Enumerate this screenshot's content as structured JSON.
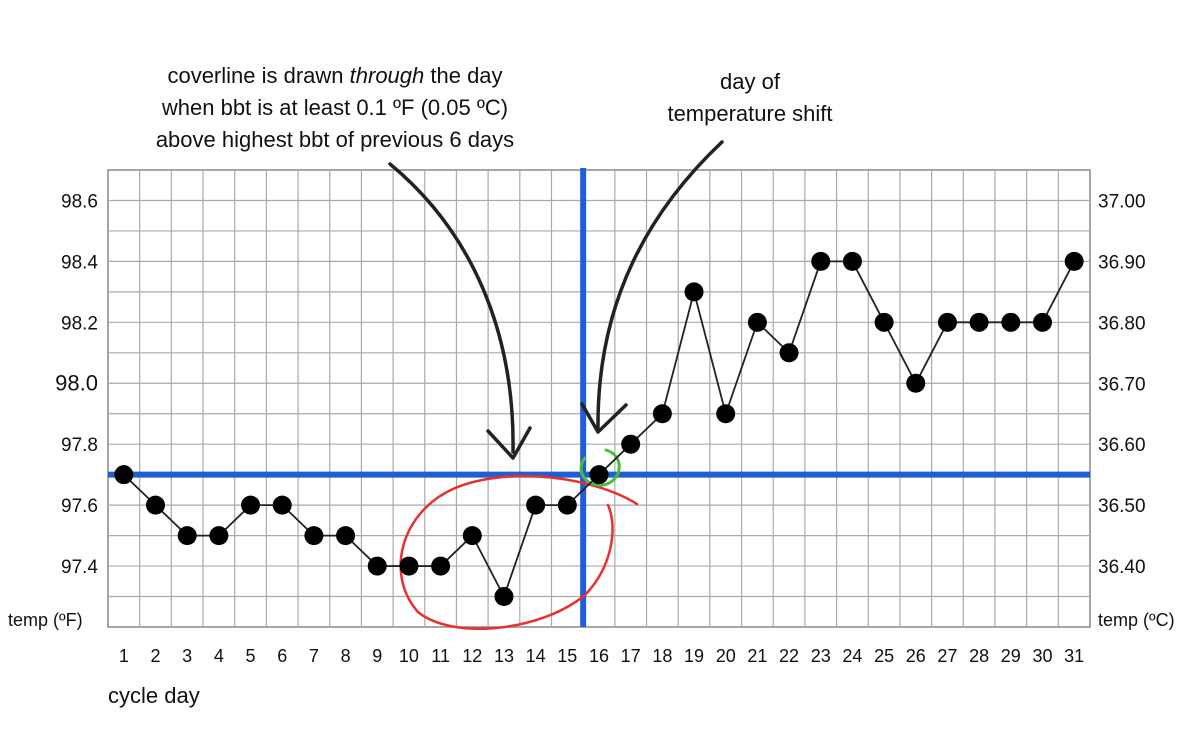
{
  "annotations": {
    "coverline": {
      "line1_pre": "coverline is drawn ",
      "line1_em": "through",
      "line1_post": " the day",
      "line2": "when bbt is at least 0.1 ºF (0.05 ºC)",
      "line3": "above highest bbt of previous 6 days"
    },
    "shift": {
      "line1": "day of",
      "line2": "temperature shift"
    }
  },
  "colors": {
    "grid": "#aaaaaa",
    "border": "#888888",
    "blue": "#1f5fd6",
    "point": "#000000",
    "red": "#e8312c",
    "green": "#4cbb3c",
    "arrow": "#222222"
  },
  "chart_data": {
    "type": "line",
    "title": "",
    "xlabel": "cycle day",
    "ylabel_left": "temp (ºF)",
    "ylabel_right": "temp (ºC)",
    "x": [
      1,
      2,
      3,
      4,
      5,
      6,
      7,
      8,
      9,
      10,
      11,
      12,
      13,
      14,
      15,
      16,
      17,
      18,
      19,
      20,
      21,
      22,
      23,
      24,
      25,
      26,
      27,
      28,
      29,
      30,
      31
    ],
    "series": [
      {
        "name": "bbt",
        "values": [
          97.7,
          97.6,
          97.5,
          97.5,
          97.6,
          97.6,
          97.5,
          97.5,
          97.4,
          97.4,
          97.4,
          97.5,
          97.3,
          97.6,
          97.6,
          97.7,
          97.8,
          97.9,
          98.3,
          97.9,
          98.2,
          98.1,
          98.4,
          98.4,
          98.2,
          98.0,
          98.2,
          98.2,
          98.2,
          98.2,
          98.4
        ]
      }
    ],
    "xlim": [
      0,
      31
    ],
    "ylim": [
      97.2,
      98.7
    ],
    "y_ticks_left": [
      "98.6",
      "98.4",
      "98.2",
      "98.0",
      "97.8",
      "97.6",
      "97.4"
    ],
    "y_ticks_right": [
      "37.00",
      "36.90",
      "36.80",
      "36.70",
      "36.60",
      "36.50",
      "36.40"
    ],
    "coverline_temp": 97.7,
    "shift_day": 15,
    "circled_day": 16,
    "grid": true
  }
}
